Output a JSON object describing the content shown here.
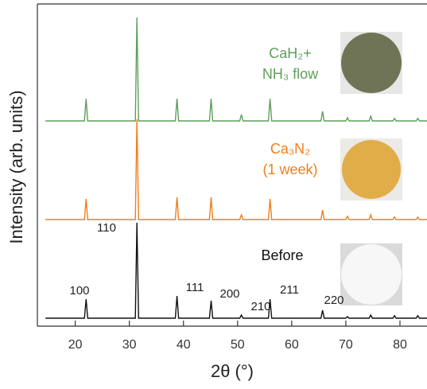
{
  "chart_data": {
    "type": "line",
    "x_label": "2θ (°)",
    "y_label": "Intensity (arb. units)",
    "xlim": [
      13,
      85
    ],
    "ylim": [
      0,
      100
    ],
    "xticks": [
      20,
      30,
      40,
      50,
      60,
      70,
      80
    ],
    "x": [
      14.5,
      21.7,
      22,
      22.3,
      31.1,
      31.4,
      31.7,
      38.5,
      38.8,
      39.1,
      44.8,
      45.1,
      45.4,
      50.4,
      50.7,
      51.0,
      55.7,
      56.0,
      56.3,
      65.4,
      65.7,
      66.0,
      70.0,
      70.3,
      70.6,
      74.3,
      74.6,
      74.9,
      78.7,
      79.0,
      79.3,
      83.0,
      83.3,
      83.6,
      85
    ],
    "series": [
      {
        "name": "CaH₂+\nNH₃ flow",
        "color": "#5f9e5c",
        "values": [
          64.5,
          64.5,
          71.5,
          64.5,
          64.5,
          97,
          64.5,
          64.5,
          71.5,
          64.5,
          64.5,
          71.5,
          64.5,
          64.5,
          66.5,
          64.5,
          64.5,
          71.5,
          64.5,
          64.5,
          67.5,
          64.5,
          64.5,
          65.5,
          64.5,
          64.5,
          66,
          64.5,
          64.5,
          65.3,
          64.5,
          64.5,
          65.3,
          64.5,
          64.5
        ]
      },
      {
        "name": "Ca₃N₂\n(1 week)",
        "color": "#f07f1b",
        "values": [
          33.5,
          33.5,
          40,
          33.5,
          33.5,
          65,
          33.5,
          33.5,
          40.5,
          33.5,
          33.5,
          40.5,
          33.5,
          33.5,
          35,
          33.5,
          33.5,
          40,
          33.5,
          33.5,
          36.5,
          33.5,
          33.5,
          34.5,
          33.5,
          33.5,
          35,
          33.5,
          33.5,
          34.3,
          33.5,
          33.5,
          34.3,
          33.5,
          33.5
        ]
      },
      {
        "name": "Before",
        "color": "#111111",
        "values": [
          2.5,
          2.5,
          8.5,
          2.5,
          2.5,
          32.5,
          2.5,
          2.5,
          9.5,
          2.5,
          2.5,
          8,
          2.5,
          2.5,
          3.5,
          2.5,
          2.5,
          8.5,
          2.5,
          2.5,
          5,
          2.5,
          2.5,
          3,
          2.5,
          2.5,
          3.5,
          2.5,
          2.5,
          3.3,
          2.5,
          2.5,
          3.3,
          2.5,
          2.5
        ]
      }
    ],
    "peak_labels": [
      "100",
      "110",
      "111",
      "200",
      "210",
      "211",
      "220"
    ]
  }
}
